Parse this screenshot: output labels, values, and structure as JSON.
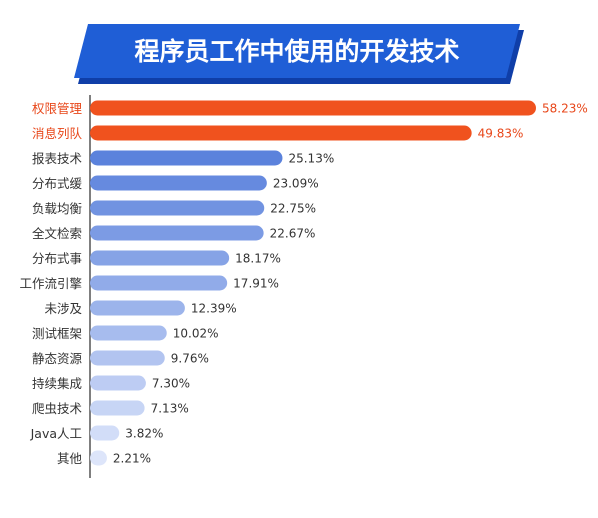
{
  "chart_data": {
    "type": "bar",
    "orientation": "horizontal",
    "title": "程序员工作中使用的开发技术",
    "categories": [
      "权限管理",
      "消息列队",
      "报表技术",
      "分布式缓",
      "负载均衡",
      "全文检索",
      "分布式事",
      "工作流引擎",
      "未涉及",
      "测试框架",
      "静态资源",
      "持续集成",
      "爬虫技术",
      "Java人工",
      "其他"
    ],
    "values": [
      58.23,
      49.83,
      25.13,
      23.09,
      22.75,
      22.67,
      18.17,
      17.91,
      12.39,
      10.02,
      9.76,
      7.3,
      7.13,
      3.82,
      2.21
    ],
    "value_labels": [
      "58.23%",
      "49.83%",
      "25.13%",
      "23.09%",
      "22.75%",
      "22.67%",
      "18.17%",
      "17.91%",
      "12.39%",
      "10.02%",
      "9.76%",
      "7.30%",
      "7.13%",
      "3.82%",
      "2.21%"
    ],
    "unit": "%",
    "xlim": [
      0,
      58.23
    ],
    "grid": false,
    "legend": "none",
    "colors": {
      "title_banner": "#1f5ed6",
      "title_banner_edge": "#0f3ea8",
      "title_text": "#ffffff",
      "highlight_bar": "#f0521e",
      "highlight_label": "#e8471a",
      "bar_gradient_start": "#5b82dc",
      "bar_gradient_end": "#dde5fa",
      "label_text": "#333333",
      "axis_line": "#555555"
    }
  }
}
